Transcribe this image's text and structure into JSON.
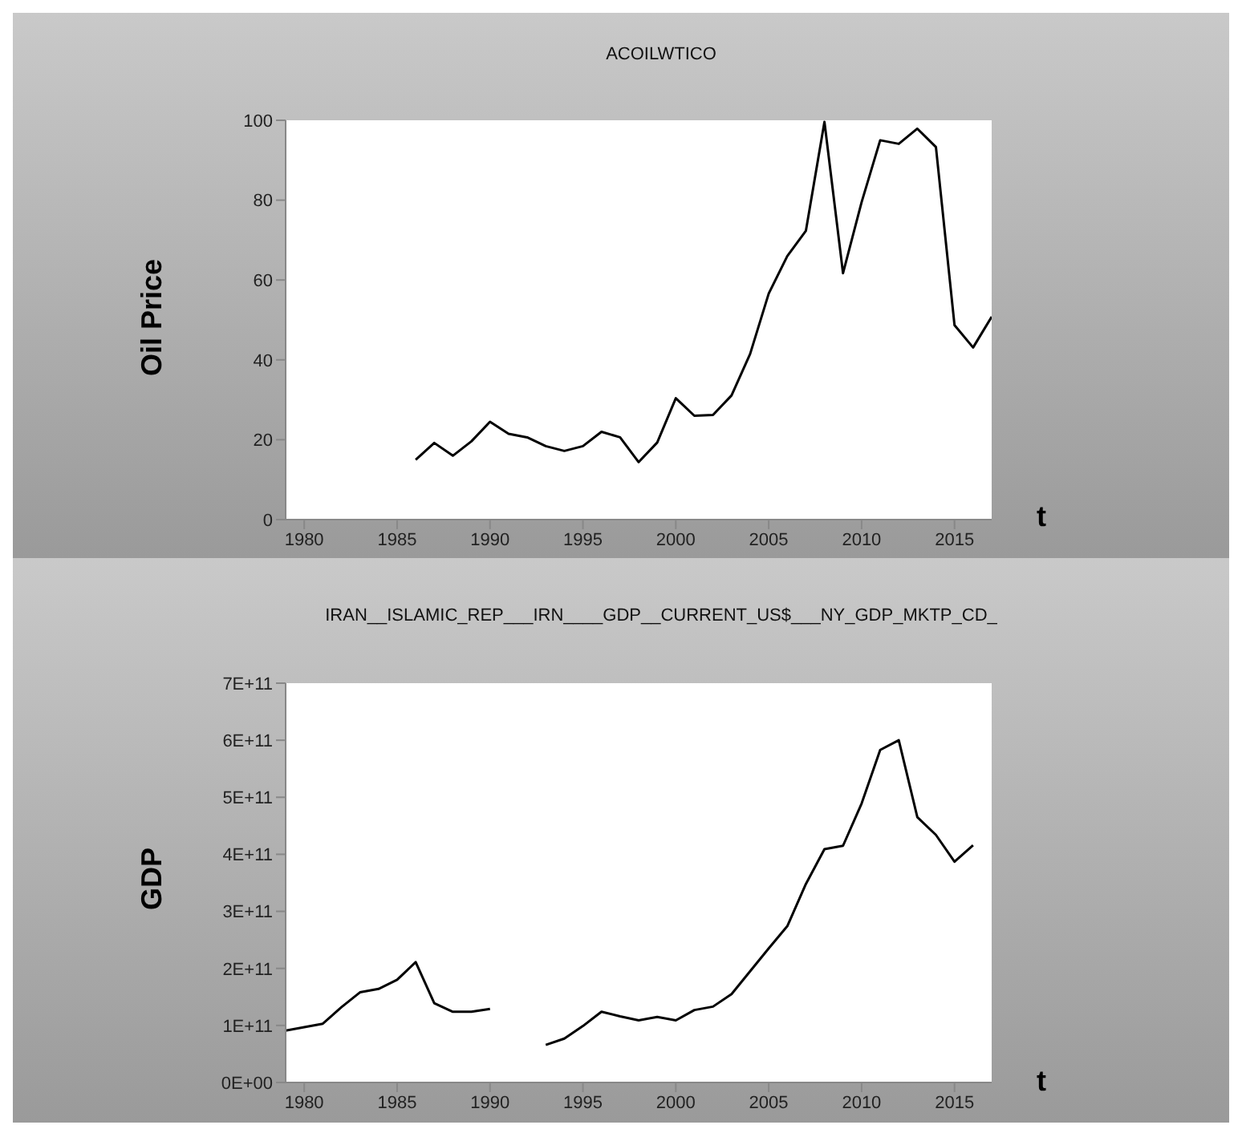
{
  "chart_data": [
    {
      "type": "line",
      "title": "ACOILWTICO",
      "ylabel": "Oil Price",
      "xlabel": "t",
      "x": [
        1986,
        1987,
        1988,
        1989,
        1990,
        1991,
        1992,
        1993,
        1994,
        1995,
        1996,
        1997,
        1998,
        1999,
        2000,
        2001,
        2002,
        2003,
        2004,
        2005,
        2006,
        2007,
        2008,
        2009,
        2010,
        2011,
        2012,
        2013,
        2014,
        2015,
        2016,
        2017
      ],
      "series": [
        {
          "color": "#000000",
          "values": [
            15.0,
            19.2,
            16.0,
            19.6,
            24.5,
            21.5,
            20.6,
            18.4,
            17.2,
            18.4,
            22.0,
            20.6,
            14.4,
            19.3,
            30.4,
            26.0,
            26.2,
            31.1,
            41.5,
            56.6,
            66.0,
            72.3,
            99.6,
            61.7,
            79.5,
            95.0,
            94.1,
            97.9,
            93.3,
            48.7,
            43.1,
            50.8
          ]
        }
      ],
      "xlim": [
        1979,
        2017
      ],
      "xticks": [
        1980,
        1985,
        1990,
        1995,
        2000,
        2005,
        2010,
        2015
      ],
      "ylim": [
        0,
        100
      ],
      "yticks": [
        0,
        20,
        40,
        60,
        80,
        100
      ],
      "grid": false,
      "marker": "none"
    },
    {
      "type": "line",
      "title": "IRAN__ISLAMIC_REP___IRN____GDP__CURRENT_US$___NY_GDP_MKTP_CD_",
      "ylabel": "GDP",
      "xlabel": "t",
      "x": [
        1979,
        1980,
        1981,
        1982,
        1983,
        1984,
        1985,
        1986,
        1987,
        1988,
        1989,
        1990,
        1991,
        1992,
        1993,
        1994,
        1995,
        1996,
        1997,
        1998,
        1999,
        2000,
        2001,
        2002,
        2003,
        2004,
        2005,
        2006,
        2007,
        2008,
        2009,
        2010,
        2011,
        2012,
        2013,
        2014,
        2015,
        2016
      ],
      "series": [
        {
          "color": "#000000",
          "values": [
            91000000000,
            97000000000,
            103000000000,
            132000000000,
            158000000000,
            164000000000,
            180000000000,
            211000000000,
            139000000000,
            124000000000,
            124000000000,
            129000000000,
            null,
            null,
            66000000000,
            77000000000,
            99000000000,
            124000000000,
            116000000000,
            109000000000,
            115000000000,
            109000000000,
            127000000000,
            133000000000,
            155000000000,
            195000000000,
            235000000000,
            274000000000,
            348000000000,
            409000000000,
            415000000000,
            489000000000,
            583000000000,
            600000000000,
            465000000000,
            434000000000,
            387000000000,
            416000000000
          ]
        }
      ],
      "xlim": [
        1979,
        2017
      ],
      "xticks": [
        1980,
        1985,
        1990,
        1995,
        2000,
        2005,
        2010,
        2015
      ],
      "ylim": [
        0,
        700000000000
      ],
      "yticks": [
        {
          "value": 0,
          "label": "0E+00"
        },
        {
          "value": 100000000000,
          "label": "1E+11"
        },
        {
          "value": 200000000000,
          "label": "2E+11"
        },
        {
          "value": 300000000000,
          "label": "3E+11"
        },
        {
          "value": 400000000000,
          "label": "4E+11"
        },
        {
          "value": 500000000000,
          "label": "5E+11"
        },
        {
          "value": 600000000000,
          "label": "6E+11"
        },
        {
          "value": 700000000000,
          "label": "7E+11"
        }
      ],
      "grid": false,
      "marker": "none"
    }
  ]
}
